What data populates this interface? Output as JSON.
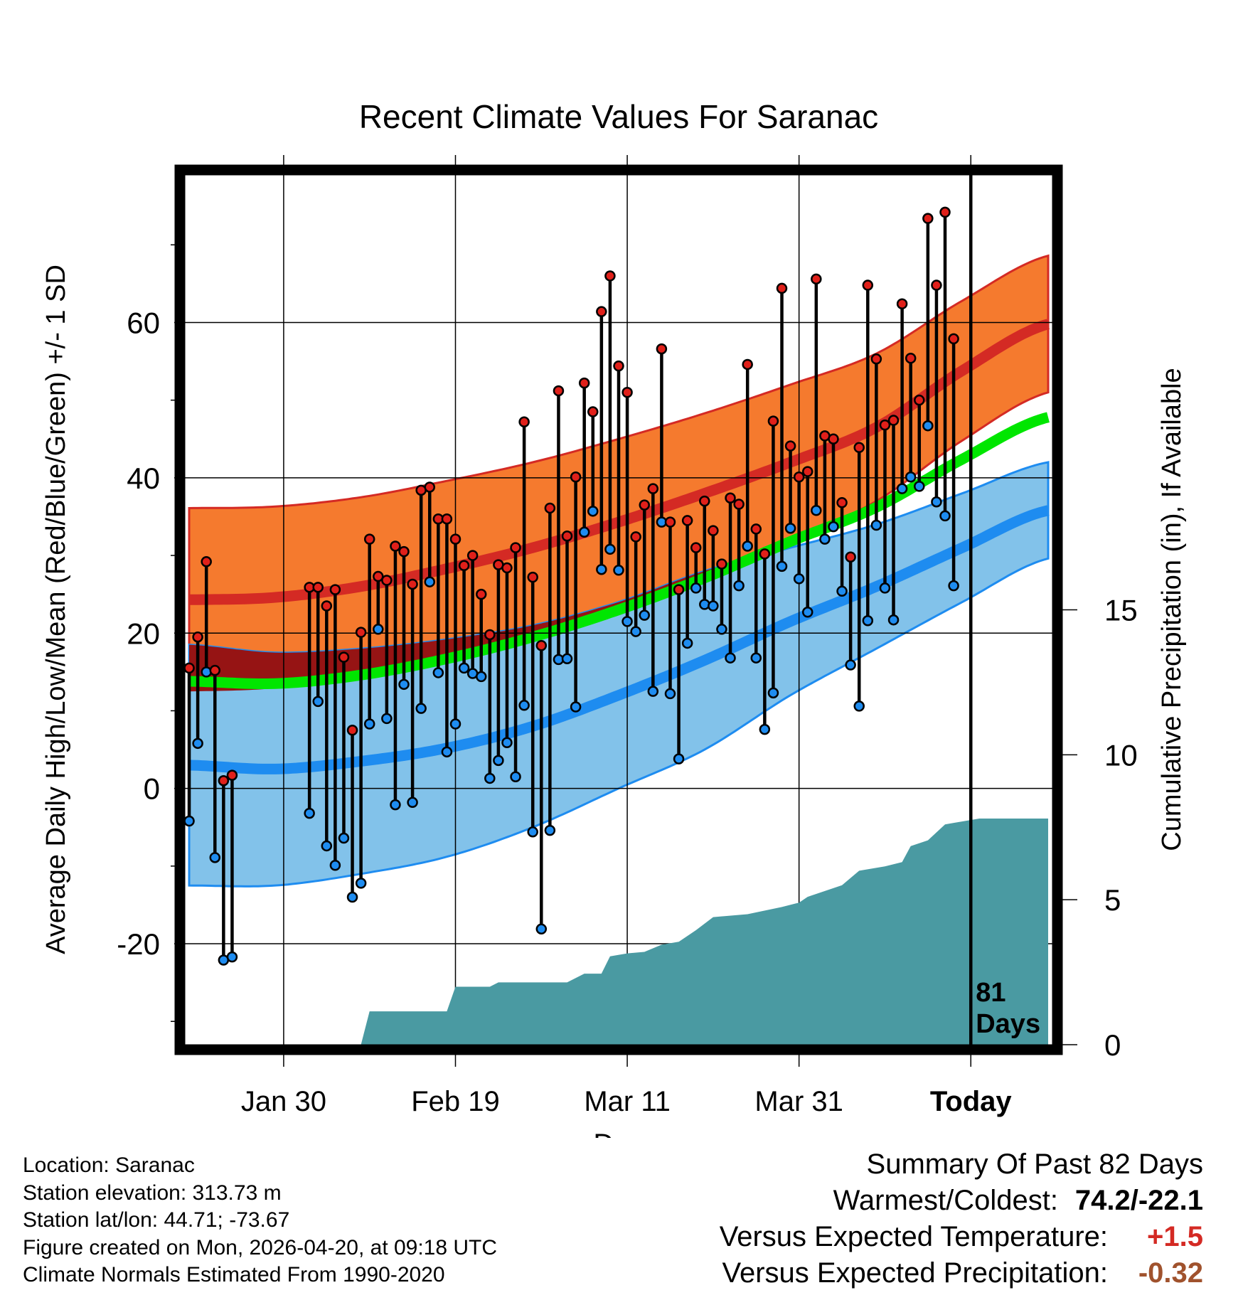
{
  "chart_data": {
    "type": "line",
    "title": "Recent Climate Values For Saranac",
    "xlabel": "Day",
    "ylabel": "Average Daily High/Low/Mean (Red/Blue/Green) +/- 1 SD",
    "y2label": "Cumulative Precipitation (in), If Available",
    "x_tick_labels": [
      "Jan 30",
      "Feb 19",
      "Mar 11",
      "Mar 31",
      "Today"
    ],
    "x_tick_days": [
      11,
      31,
      51,
      71,
      91
    ],
    "xlim": [
      -0.5,
      100.5
    ],
    "ylim": [
      -33,
      79
    ],
    "y_ticks": [
      -20,
      0,
      20,
      40,
      60
    ],
    "y2lim": [
      0,
      30
    ],
    "y2_ticks": [
      0,
      5,
      10,
      15
    ],
    "today_day": 91,
    "today_label_line1": "81",
    "today_label_line2": "Days",
    "colors": {
      "high": "#d42a24",
      "high_band": "#f57a2e",
      "overlap": "#961414",
      "low": "#1e8cf0",
      "low_band": "#82c2ea",
      "mean": "#00e600",
      "precip": "#4a9aa2"
    },
    "normals": {
      "days": [
        0,
        10,
        20,
        30,
        40,
        50,
        60,
        70,
        80,
        90,
        100
      ],
      "high_mean": [
        24.3,
        24.6,
        26.0,
        28.3,
        31.0,
        34.3,
        38.0,
        42.0,
        46.5,
        53.8,
        59.8
      ],
      "high_sd": [
        11.8,
        11.7,
        11.5,
        11.3,
        11.0,
        10.7,
        10.3,
        10.0,
        9.5,
        9.0,
        8.8
      ],
      "low_mean": [
        3.0,
        2.5,
        3.5,
        5.2,
        8.0,
        12.0,
        16.5,
        21.5,
        26.0,
        31.0,
        35.8
      ],
      "low_sd": [
        15.5,
        15.0,
        14.5,
        14.0,
        13.0,
        12.0,
        11.5,
        9.5,
        8.0,
        7.0,
        6.2
      ],
      "mean": [
        13.8,
        13.5,
        14.6,
        16.7,
        19.5,
        23.0,
        27.1,
        31.8,
        36.2,
        42.4,
        47.8
      ]
    },
    "daily": {
      "highs": [
        15.5,
        19.5,
        29.2,
        15.2,
        1.0,
        1.7,
        null,
        null,
        null,
        null,
        null,
        null,
        null,
        null,
        25.9,
        25.9,
        23.5,
        25.6,
        16.9,
        7.5,
        20.1,
        32.1,
        27.3,
        26.8,
        31.2,
        30.5,
        26.3,
        38.4,
        38.8,
        34.7,
        34.7,
        32.1,
        28.7,
        30.0,
        25.0,
        19.8,
        28.8,
        28.4,
        31.0,
        47.2,
        27.2,
        18.4,
        36.1,
        51.2,
        32.5,
        40.1,
        52.2,
        48.5,
        61.4,
        66.0,
        54.4,
        51.0,
        32.4,
        36.5,
        38.6,
        56.6,
        34.3,
        25.6,
        34.5,
        31.0,
        37.0,
        33.2,
        28.9,
        37.4,
        36.6,
        54.6,
        33.4,
        30.2,
        47.3,
        64.4,
        44.1,
        40.1,
        40.8,
        65.6,
        45.4,
        45.0,
        36.8,
        29.8,
        43.9,
        64.8,
        55.3,
        46.8,
        47.4,
        62.4,
        55.4,
        50.0,
        73.4,
        64.8,
        74.2,
        57.9
      ],
      "lows": [
        -4.2,
        5.8,
        15.0,
        -8.9,
        -22.1,
        -21.7,
        null,
        null,
        null,
        null,
        null,
        null,
        null,
        null,
        -3.2,
        11.2,
        -7.4,
        -9.9,
        -6.4,
        -14.0,
        -12.2,
        8.3,
        20.5,
        9.0,
        -2.1,
        13.4,
        -1.8,
        10.3,
        26.6,
        14.9,
        4.7,
        8.3,
        15.5,
        14.8,
        14.4,
        1.3,
        3.6,
        5.9,
        1.5,
        10.7,
        -5.6,
        -18.1,
        -5.4,
        16.6,
        16.7,
        10.5,
        33.0,
        35.7,
        28.2,
        30.8,
        28.1,
        21.5,
        20.2,
        22.3,
        12.5,
        34.3,
        12.2,
        3.8,
        18.7,
        25.8,
        23.7,
        23.5,
        20.5,
        16.8,
        26.1,
        31.2,
        16.8,
        7.6,
        12.3,
        28.6,
        33.5,
        27.0,
        22.7,
        35.8,
        32.1,
        33.7,
        25.4,
        15.9,
        10.6,
        21.6,
        33.9,
        25.8,
        21.7,
        38.6,
        40.1,
        38.9,
        46.7,
        36.9,
        35.1,
        26.1
      ]
    },
    "precip_steps": [
      [
        0,
        0
      ],
      [
        20,
        0
      ],
      [
        21,
        1.15
      ],
      [
        30,
        1.15
      ],
      [
        31,
        2.0
      ],
      [
        35,
        2.0
      ],
      [
        36,
        2.15
      ],
      [
        44,
        2.15
      ],
      [
        46,
        2.45
      ],
      [
        48,
        2.45
      ],
      [
        49,
        3.05
      ],
      [
        51,
        3.15
      ],
      [
        53,
        3.2
      ],
      [
        55,
        3.45
      ],
      [
        57,
        3.55
      ],
      [
        59,
        3.95
      ],
      [
        61,
        4.4
      ],
      [
        65,
        4.5
      ],
      [
        69,
        4.75
      ],
      [
        71,
        4.9
      ],
      [
        72,
        5.1
      ],
      [
        76,
        5.5
      ],
      [
        78,
        6.0
      ],
      [
        81,
        6.15
      ],
      [
        83,
        6.3
      ],
      [
        84,
        6.85
      ],
      [
        86,
        7.05
      ],
      [
        88,
        7.6
      ],
      [
        89,
        7.65
      ],
      [
        92,
        7.8
      ],
      [
        100,
        7.8
      ]
    ]
  },
  "info": {
    "location": "Location: Saranac",
    "elevation": "Station elevation: 313.73 m",
    "latlon": "Station lat/lon: 44.71; -73.67",
    "created": "Figure created on Mon, 2026-04-20, at 09:18 UTC",
    "normals": "Climate Normals Estimated From 1990-2020"
  },
  "summary": {
    "title": "Summary Of Past 82 Days",
    "extremes_label": "Warmest/Coldest:",
    "extremes_value": "74.2/-22.1",
    "temp_label": "Versus Expected Temperature:",
    "temp_value": "+1.5",
    "temp_color": "#d42a24",
    "precip_label": "Versus Expected Precipitation:",
    "precip_value": "-0.32",
    "precip_color": "#a0522d"
  }
}
